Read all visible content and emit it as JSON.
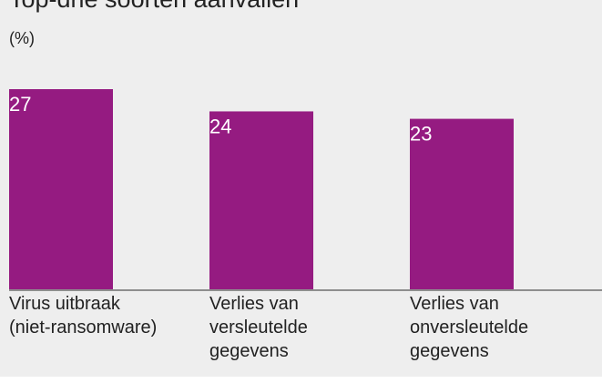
{
  "chart_data": {
    "type": "bar",
    "title": "Top-drie soorten aanvallen",
    "subtitle": "(%)",
    "categories": [
      [
        "Virus uitbraak",
        "(niet-ransomware)"
      ],
      [
        "Verlies van",
        "versleutelde",
        "gegevens"
      ],
      [
        "Verlies van",
        "onversleutelde",
        "gegevens"
      ]
    ],
    "values": [
      27,
      24,
      23
    ],
    "color": "#951b81",
    "ylim": [
      0,
      27
    ]
  }
}
